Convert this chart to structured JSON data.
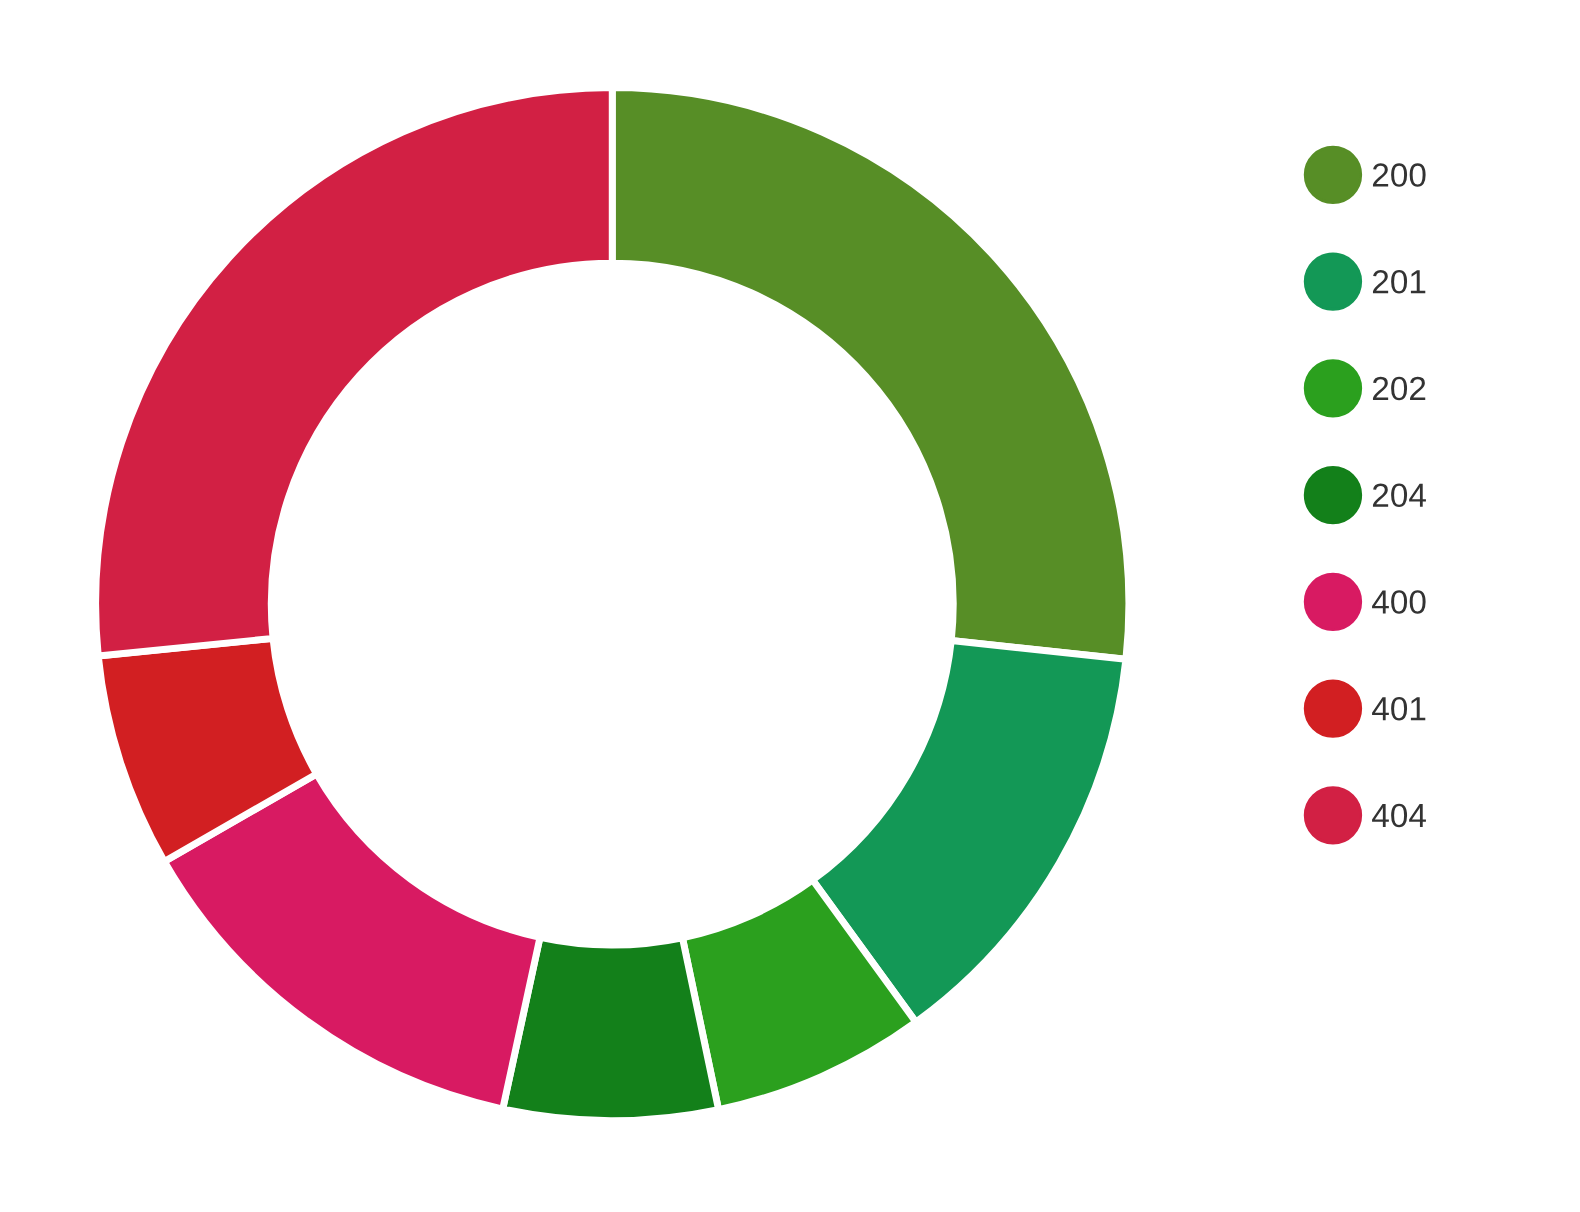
{
  "chart_data": {
    "type": "donut",
    "categories": [
      "200",
      "201",
      "202",
      "204",
      "400",
      "401",
      "404"
    ],
    "values": [
      26.7,
      13.3,
      6.7,
      6.7,
      13.3,
      6.7,
      26.6
    ],
    "colors": [
      "#578e26",
      "#139856",
      "#2ba01e",
      "#13801a",
      "#d81a62",
      "#d21f22",
      "#d22044"
    ],
    "legend": "right"
  }
}
